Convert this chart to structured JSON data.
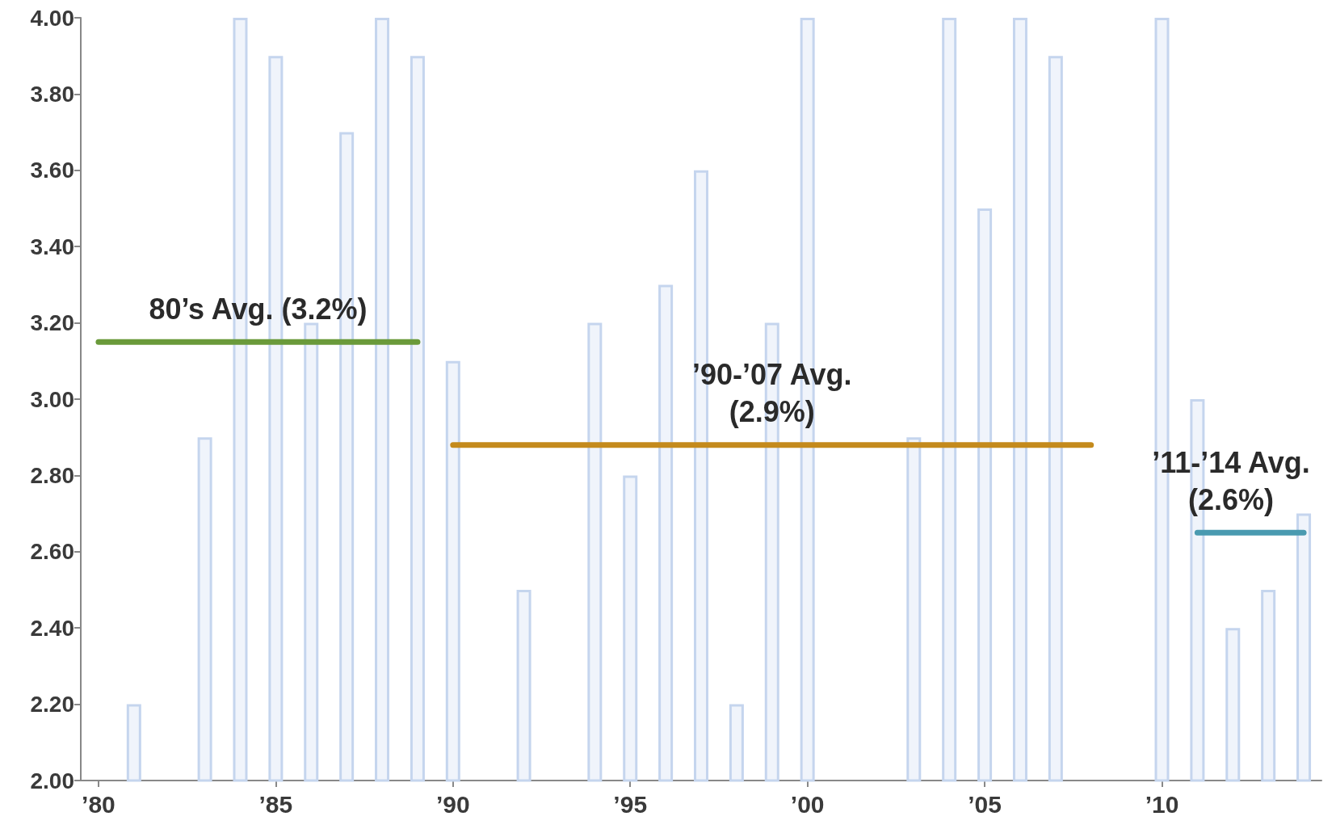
{
  "chart_data": {
    "type": "bar",
    "x": [
      1980,
      1981,
      1982,
      1983,
      1984,
      1985,
      1986,
      1987,
      1988,
      1989,
      1990,
      1991,
      1992,
      1993,
      1994,
      1995,
      1996,
      1997,
      1998,
      1999,
      2000,
      2001,
      2002,
      2003,
      2004,
      2005,
      2006,
      2007,
      2008,
      2009,
      2010,
      2011,
      2012,
      2013,
      2014
    ],
    "series": [
      {
        "color": "#c5d5ee",
        "values": [
          2.0,
          2.2,
          2.0,
          2.9,
          4.0,
          3.9,
          3.2,
          3.7,
          4.0,
          3.9,
          3.1,
          2.0,
          2.5,
          2.0,
          3.2,
          2.8,
          3.3,
          3.6,
          2.2,
          3.2,
          4.0,
          2.0,
          2.0,
          2.9,
          4.0,
          3.5,
          4.0,
          3.9,
          2.0,
          2.0,
          4.0,
          3.0,
          2.4,
          2.5,
          2.7
        ]
      },
      {
        "type": "line",
        "color": "#6a9a3a",
        "x": [
          1980,
          1989
        ],
        "values": [
          3.15,
          3.15
        ]
      },
      {
        "type": "line",
        "color": "#c48a1c",
        "x": [
          1990,
          2008
        ],
        "values": [
          2.88,
          2.88
        ]
      },
      {
        "type": "line",
        "color": "#4a9ab0",
        "x": [
          2011,
          2014
        ],
        "values": [
          2.65,
          2.65
        ]
      }
    ],
    "xlim": [
      1979.5,
      2014.5
    ],
    "xticks": [
      {
        "value": 1980,
        "label": "’80"
      },
      {
        "value": 1985,
        "label": "’85"
      },
      {
        "value": 1990,
        "label": "’90"
      },
      {
        "value": 1995,
        "label": "’95"
      },
      {
        "value": 2000,
        "label": "’00"
      },
      {
        "value": 2005,
        "label": "’05"
      },
      {
        "value": 2010,
        "label": "’10"
      }
    ],
    "ylim": [
      2.0,
      4.0
    ],
    "yticks": [
      {
        "value": 2.0,
        "label": "2.00"
      },
      {
        "value": 2.2,
        "label": "2.20"
      },
      {
        "value": 2.4,
        "label": "2.40"
      },
      {
        "value": 2.6,
        "label": "2.60"
      },
      {
        "value": 2.8,
        "label": "2.80"
      },
      {
        "value": 3.0,
        "label": "3.00"
      },
      {
        "value": 3.2,
        "label": "3.20"
      },
      {
        "value": 3.4,
        "label": "3.40"
      },
      {
        "value": 3.6,
        "label": "3.60"
      },
      {
        "value": 3.8,
        "label": "3.80"
      },
      {
        "value": 4.0,
        "label": "4.00"
      }
    ],
    "annotations": [
      "80’s Avg. (3.2%)",
      "’90-’07 Avg.\n(2.9%)",
      "’11-’14 Avg.\n(2.6%)"
    ],
    "grid": false
  }
}
